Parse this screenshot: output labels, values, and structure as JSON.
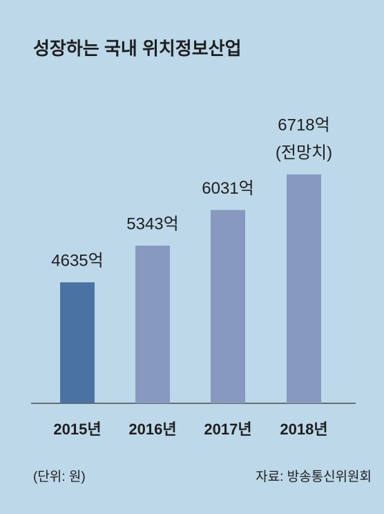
{
  "chart_data": {
    "type": "bar",
    "title": "성장하는 국내 위치정보산업",
    "categories": [
      "2015년",
      "2016년",
      "2017년",
      "2018년"
    ],
    "values": [
      4635,
      5343,
      6031,
      6718
    ],
    "value_labels": [
      "4635억",
      "5343억",
      "6031억",
      "6718억"
    ],
    "colors": [
      "#4a72a2",
      "#8799bf",
      "#8799bf",
      "#8799bf"
    ],
    "annotation": "(전망치)",
    "unit_note": "(단위: 원)",
    "source": "자료: 방송통신위원회",
    "ylim": [
      2300,
      7000
    ]
  }
}
